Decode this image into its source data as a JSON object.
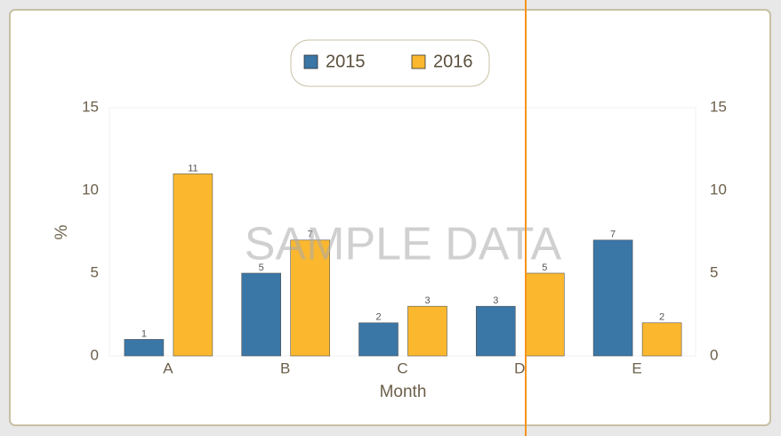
{
  "chart_data": {
    "type": "bar",
    "categories": [
      "A",
      "B",
      "C",
      "D",
      "E"
    ],
    "series": [
      {
        "name": "2015",
        "color": "#3a76a6",
        "values": [
          1,
          5,
          2,
          3,
          7
        ]
      },
      {
        "name": "2016",
        "color": "#fbb82e",
        "values": [
          11,
          7,
          3,
          5,
          2
        ]
      }
    ],
    "xlabel": "Month",
    "ylabel": "%",
    "ylim": [
      0,
      15
    ],
    "yticks": [
      0,
      5,
      10,
      15
    ],
    "y2lim": [
      0,
      15
    ],
    "y2ticks": [
      0,
      5,
      10,
      15
    ],
    "watermark": "SAMPLE DATA",
    "legend": "top"
  }
}
